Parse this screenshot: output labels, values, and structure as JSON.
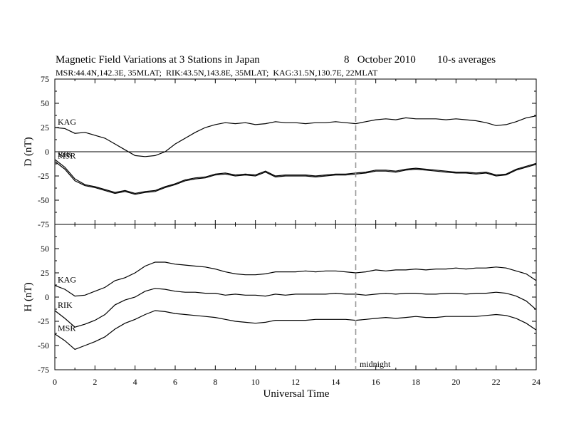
{
  "chart_data": {
    "type": "line",
    "title": "Magnetic Field Variations at 3 Stations in Japan",
    "date": "8   October 2010",
    "averaging": "10-s averages",
    "subtitle": "MSR:44.4N,142.3E, 35MLAT;  RIK:43.5N,143.8E, 35MLAT;  KAG:31.5N,130.7E, 22MLAT",
    "xlabel": "Universal Time",
    "xlim": [
      0,
      24
    ],
    "x_ticks": [
      0,
      2,
      4,
      6,
      8,
      10,
      12,
      14,
      16,
      18,
      20,
      22,
      24
    ],
    "marker": {
      "x": 15,
      "label": "midnight",
      "style": "dashed",
      "color": "#999999"
    },
    "panels": [
      {
        "ylabel": "D (nT)",
        "ylim": [
          -75,
          75
        ],
        "y_ticks": [
          75,
          50,
          25,
          0,
          -25,
          -50,
          -75
        ],
        "zero_line": true,
        "series": [
          {
            "name": "KAG",
            "x": [
              0,
              0.5,
              1,
              1.5,
              2,
              2.5,
              3,
              3.5,
              4,
              4.5,
              5,
              5.5,
              6,
              6.5,
              7,
              7.5,
              8,
              8.5,
              9,
              9.5,
              10,
              10.5,
              11,
              11.5,
              12,
              12.5,
              13,
              13.5,
              14,
              14.5,
              15,
              15.5,
              16,
              16.5,
              17,
              17.5,
              18,
              18.5,
              19,
              19.5,
              20,
              20.5,
              21,
              21.5,
              22,
              22.5,
              23,
              23.5,
              24
            ],
            "y": [
              25,
              24,
              19,
              20,
              17,
              14,
              8,
              2,
              -4,
              -5,
              -4,
              0,
              8,
              14,
              20,
              25,
              28,
              30,
              29,
              30,
              28,
              29,
              31,
              30,
              30,
              29,
              30,
              30,
              31,
              30,
              29,
              31,
              33,
              34,
              33,
              35,
              34,
              34,
              34,
              33,
              34,
              33,
              32,
              30,
              27,
              28,
              31,
              35,
              37
            ]
          },
          {
            "name": "RIK",
            "x": [
              0,
              0.5,
              1,
              1.5,
              2,
              2.5,
              3,
              3.5,
              4,
              4.5,
              5,
              5.5,
              6,
              6.5,
              7,
              7.5,
              8,
              8.5,
              9,
              9.5,
              10,
              10.5,
              11,
              11.5,
              12,
              12.5,
              13,
              13.5,
              14,
              14.5,
              15,
              15.5,
              16,
              16.5,
              17,
              17.5,
              18,
              18.5,
              19,
              19.5,
              20,
              20.5,
              21,
              21.5,
              22,
              22.5,
              23,
              23.5,
              24
            ],
            "y": [
              -8,
              -16,
              -28,
              -34,
              -36,
              -39,
              -42,
              -40,
              -43,
              -41,
              -40,
              -36,
              -33,
              -29,
              -27,
              -26,
              -23,
              -22,
              -24,
              -23,
              -24,
              -20,
              -25,
              -24,
              -24,
              -24,
              -25,
              -24,
              -23,
              -23,
              -22,
              -21,
              -19,
              -19,
              -20,
              -18,
              -17,
              -18,
              -19,
              -20,
              -21,
              -21,
              -22,
              -21,
              -24,
              -23,
              -18,
              -15,
              -12
            ]
          },
          {
            "name": "MSR",
            "x": [
              0,
              0.5,
              1,
              1.5,
              2,
              2.5,
              3,
              3.5,
              4,
              4.5,
              5,
              5.5,
              6,
              6.5,
              7,
              7.5,
              8,
              8.5,
              9,
              9.5,
              10,
              10.5,
              11,
              11.5,
              12,
              12.5,
              13,
              13.5,
              14,
              14.5,
              15,
              15.5,
              16,
              16.5,
              17,
              17.5,
              18,
              18.5,
              19,
              19.5,
              20,
              20.5,
              21,
              21.5,
              22,
              22.5,
              23,
              23.5,
              24
            ],
            "y": [
              -10,
              -18,
              -30,
              -35,
              -37,
              -40,
              -43,
              -41,
              -44,
              -42,
              -41,
              -37,
              -34,
              -30,
              -28,
              -27,
              -24,
              -23,
              -25,
              -24,
              -25,
              -21,
              -26,
              -25,
              -25,
              -25,
              -26,
              -25,
              -24,
              -24,
              -23,
              -22,
              -20,
              -20,
              -21,
              -19,
              -18,
              -19,
              -20,
              -21,
              -22,
              -22,
              -23,
              -22,
              -25,
              -24,
              -19,
              -16,
              -13
            ]
          }
        ]
      },
      {
        "ylabel": "H (nT)",
        "ylim": [
          -75,
          75
        ],
        "y_ticks": [
          75,
          50,
          25,
          0,
          -25,
          -50,
          -75
        ],
        "zero_line": false,
        "series": [
          {
            "name": "KAG",
            "x": [
              0,
              0.5,
              1,
              1.5,
              2,
              2.5,
              3,
              3.5,
              4,
              4.5,
              5,
              5.5,
              6,
              6.5,
              7,
              7.5,
              8,
              8.5,
              9,
              9.5,
              10,
              10.5,
              11,
              11.5,
              12,
              12.5,
              13,
              13.5,
              14,
              14.5,
              15,
              15.5,
              16,
              16.5,
              17,
              17.5,
              18,
              18.5,
              19,
              19.5,
              20,
              20.5,
              21,
              21.5,
              22,
              22.5,
              23,
              23.5,
              24
            ],
            "y": [
              12,
              8,
              1,
              2,
              6,
              10,
              17,
              20,
              25,
              32,
              36,
              36,
              34,
              33,
              32,
              31,
              29,
              26,
              24,
              23,
              23,
              24,
              26,
              26,
              26,
              27,
              26,
              27,
              27,
              26,
              25,
              26,
              28,
              27,
              28,
              28,
              29,
              28,
              29,
              29,
              30,
              29,
              30,
              30,
              31,
              30,
              27,
              24,
              17
            ]
          },
          {
            "name": "RIK",
            "x": [
              0,
              0.5,
              1,
              1.5,
              2,
              2.5,
              3,
              3.5,
              4,
              4.5,
              5,
              5.5,
              6,
              6.5,
              7,
              7.5,
              8,
              8.5,
              9,
              9.5,
              10,
              10.5,
              11,
              11.5,
              12,
              12.5,
              13,
              13.5,
              14,
              14.5,
              15,
              15.5,
              16,
              16.5,
              17,
              17.5,
              18,
              18.5,
              19,
              19.5,
              20,
              20.5,
              21,
              21.5,
              22,
              22.5,
              23,
              23.5,
              24
            ],
            "y": [
              -14,
              -22,
              -31,
              -28,
              -24,
              -18,
              -8,
              -3,
              0,
              6,
              9,
              8,
              6,
              5,
              5,
              4,
              4,
              2,
              3,
              2,
              2,
              1,
              3,
              2,
              3,
              3,
              3,
              3,
              4,
              3,
              3,
              2,
              3,
              4,
              3,
              4,
              4,
              3,
              3,
              4,
              4,
              3,
              4,
              4,
              5,
              4,
              1,
              -4,
              -13
            ]
          },
          {
            "name": "MSR",
            "x": [
              0,
              0.5,
              1,
              1.5,
              2,
              2.5,
              3,
              3.5,
              4,
              4.5,
              5,
              5.5,
              6,
              6.5,
              7,
              7.5,
              8,
              8.5,
              9,
              9.5,
              10,
              10.5,
              11,
              11.5,
              12,
              12.5,
              13,
              13.5,
              14,
              14.5,
              15,
              15.5,
              16,
              16.5,
              17,
              17.5,
              18,
              18.5,
              19,
              19.5,
              20,
              20.5,
              21,
              21.5,
              22,
              22.5,
              23,
              23.5,
              24
            ],
            "y": [
              -38,
              -45,
              -54,
              -50,
              -46,
              -41,
              -33,
              -27,
              -23,
              -18,
              -14,
              -15,
              -17,
              -18,
              -19,
              -20,
              -21,
              -23,
              -25,
              -26,
              -27,
              -26,
              -24,
              -24,
              -24,
              -24,
              -23,
              -23,
              -23,
              -23,
              -24,
              -23,
              -22,
              -21,
              -22,
              -21,
              -20,
              -21,
              -21,
              -20,
              -20,
              -20,
              -20,
              -19,
              -18,
              -19,
              -22,
              -27,
              -34
            ]
          }
        ]
      }
    ],
    "colors": {
      "line": "#000000",
      "marker": "#999999"
    }
  }
}
